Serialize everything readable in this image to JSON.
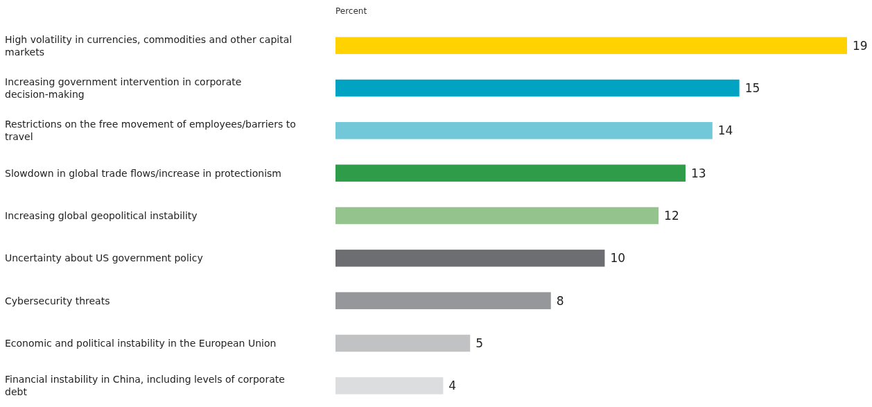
{
  "chart_data": {
    "type": "bar",
    "orientation": "horizontal",
    "xlabel": "Percent",
    "data_labels": true,
    "categories": [
      "High volatility in currencies, commodities and other capital markets",
      "Increasing government intervention in corporate decision-making",
      "Restrictions on the free movement of employees/barriers to travel",
      "Slowdown in global trade flows/increase in protectionism",
      "Increasing global geopolitical instability",
      "Uncertainty about US government policy",
      "Cybersecurity threats",
      "Economic and political instability in the European Union",
      "Financial instability in China, including levels of corporate debt"
    ],
    "values": [
      19,
      15,
      14,
      13,
      12,
      10,
      8,
      5,
      4
    ],
    "colors": [
      "#ffd200",
      "#00a3c1",
      "#72c8d8",
      "#2e9c48",
      "#95c38d",
      "#6d6e71",
      "#96979a",
      "#c1c2c4",
      "#dcdddf"
    ]
  }
}
